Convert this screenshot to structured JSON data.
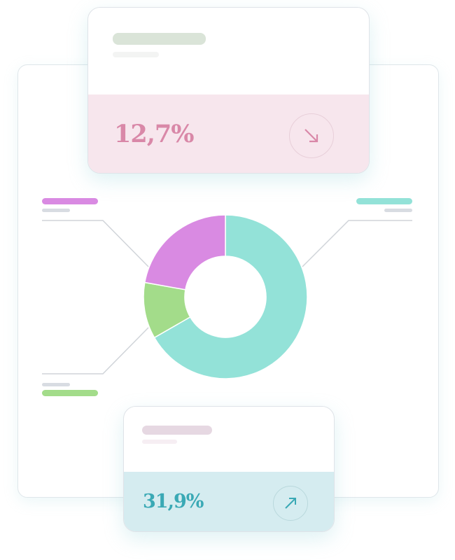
{
  "top_card": {
    "value": "12,7%",
    "trend_icon": "arrow-down-right-icon",
    "accent": "#d988a8",
    "background": "#f7e6ed"
  },
  "bottom_card": {
    "value": "31,9%",
    "trend_icon": "arrow-up-right-icon",
    "accent": "#3aa9b5",
    "background": "#d5ecf0"
  },
  "chart_data": {
    "type": "pie",
    "variant": "donut",
    "values": [
      66.7,
      11.1,
      22.2
    ],
    "colors": [
      "#93e2d8",
      "#a3dc8a",
      "#d98ae2"
    ],
    "legend_colors": [
      "#93e2d8",
      "#a3dc8a",
      "#d98ae2"
    ]
  }
}
